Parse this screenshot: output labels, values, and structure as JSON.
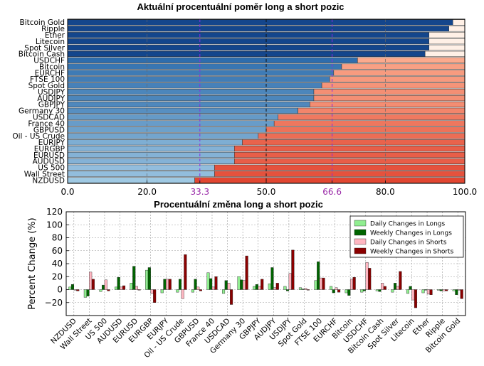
{
  "chart_data": [
    {
      "type": "bar",
      "orientation": "horizontal",
      "stacked": true,
      "title": "Aktuální procentuální poměr long a short pozic",
      "categories": [
        "NZDUSD",
        "Wall Street",
        "US 500",
        "AUDUSD",
        "EURUSD",
        "EURGBP",
        "EURJPY",
        "Oil - US Crude",
        "GBPUSD",
        "France 40",
        "USDCAD",
        "Germany 30",
        "GBPJPY",
        "AUDJPY",
        "USDJPY",
        "Spot Gold",
        "FTSE 100",
        "EURCHF",
        "Bitcoin",
        "USDCHF",
        "Bitcoin Cash",
        "Spot Silver",
        "Litecoin",
        "Ether",
        "Ripple",
        "Bitcoin Gold"
      ],
      "series": [
        {
          "values": [
            32,
            37,
            37,
            42,
            42,
            42,
            44,
            48,
            50,
            52,
            53,
            58,
            61,
            62,
            62,
            64,
            66,
            67,
            69,
            73,
            90,
            91,
            91,
            91,
            96,
            97
          ]
        },
        {
          "values": [
            68,
            63,
            63,
            58,
            58,
            58,
            56,
            52,
            50,
            48,
            47,
            42,
            39,
            38,
            38,
            36,
            34,
            33,
            31,
            27,
            10,
            9,
            9,
            9,
            4,
            3
          ]
        }
      ],
      "xlim": [
        0,
        100
      ],
      "xticks": [
        "0.0",
        "20.0",
        "33.3",
        "50.0",
        "66.6",
        "80.0",
        "100.0"
      ],
      "reference_lines": [
        33.3,
        50.0,
        66.6
      ],
      "grid": true
    },
    {
      "type": "bar",
      "title": "Procentuální změna long a short pozic",
      "ylabel": "Percent Change (%)",
      "ylim": [
        -40,
        120
      ],
      "yticks": [
        "120",
        "100",
        "80",
        "60",
        "40",
        "20",
        "0",
        "−20"
      ],
      "legend": "top-right",
      "grid": true,
      "categories": [
        "NZDUSD",
        "Wall Street",
        "US 500",
        "AUDUSD",
        "EURUSD",
        "EURGBP",
        "EURJPY",
        "Oil - US Crude",
        "GBPUSD",
        "France 40",
        "USDCAD",
        "Germany 30",
        "GBPJPY",
        "AUDJPY",
        "USDJPY",
        "Spot Gold",
        "FTSE 100",
        "EURCHF",
        "Bitcoin",
        "USDCHF",
        "Bitcoin Cash",
        "Spot Silver",
        "Litecoin",
        "Ether",
        "Ripple",
        "Bitcoin Gold"
      ],
      "series": [
        {
          "name": "Daily Changes in Longs",
          "color": "#90ee90",
          "values": [
            4,
            -12,
            -3,
            4,
            10,
            30,
            -5,
            -4,
            -4,
            26,
            -6,
            20,
            5,
            9,
            5,
            3,
            14,
            5,
            -5,
            -4,
            -2,
            -4,
            -6,
            -5,
            -1,
            -2
          ]
        },
        {
          "name": "Weekly Changes in Longs",
          "color": "#006400",
          "values": [
            8,
            -10,
            7,
            19,
            36,
            34,
            16,
            16,
            16,
            17,
            14,
            15,
            8,
            34,
            -2,
            1,
            43,
            -5,
            -9,
            -2,
            -3,
            10,
            5,
            0,
            -2,
            -8
          ]
        },
        {
          "name": "Daily Changes in Shorts",
          "color": "#ffb6c1",
          "values": [
            0,
            27,
            15,
            4,
            5,
            -6,
            16,
            -14,
            4,
            4,
            10,
            14,
            5,
            3,
            25,
            2,
            18,
            3,
            16,
            42,
            10,
            5,
            -16,
            -7,
            -2,
            -1
          ]
        },
        {
          "name": "Weekly Changes in Shorts",
          "color": "#8b0000",
          "values": [
            -2,
            16,
            -2,
            6,
            0,
            -20,
            16,
            54,
            -2,
            20,
            -23,
            52,
            16,
            10,
            61,
            0,
            18,
            -4,
            19,
            33,
            5,
            28,
            -28,
            -8,
            -2,
            -14
          ]
        }
      ]
    }
  ]
}
